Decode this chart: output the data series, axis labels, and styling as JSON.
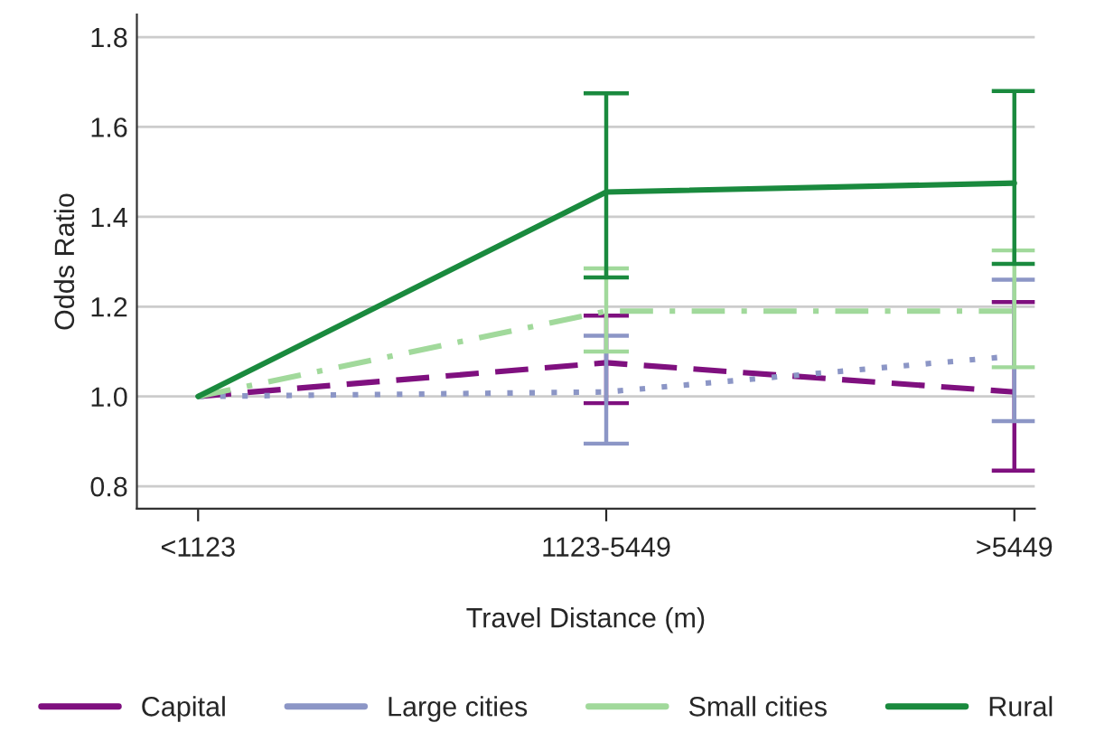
{
  "chart_data": {
    "type": "line",
    "xlabel": "Travel Distance (m)",
    "ylabel": "Odds Ratio",
    "categories": [
      "<1123",
      "1123-5449",
      ">5449"
    ],
    "series": [
      {
        "name": "Capital",
        "color": "#7f107f",
        "line_style": "dashed",
        "values": [
          1.0,
          1.075,
          1.01
        ],
        "errors": [
          null,
          [
            0.985,
            1.18
          ],
          [
            0.835,
            1.21
          ]
        ]
      },
      {
        "name": "Large cities",
        "color": "#8c96c6",
        "line_style": "dotted",
        "values": [
          1.0,
          1.01,
          1.09
        ],
        "errors": [
          null,
          [
            0.895,
            1.135
          ],
          [
            0.945,
            1.26
          ]
        ]
      },
      {
        "name": "Small cities",
        "color": "#a1d99b",
        "line_style": "dashdot",
        "values": [
          1.0,
          1.19,
          1.19
        ],
        "errors": [
          null,
          [
            1.1,
            1.285
          ],
          [
            1.065,
            1.325
          ]
        ]
      },
      {
        "name": "Rural",
        "color": "#1a8a3e",
        "line_style": "solid",
        "values": [
          1.0,
          1.455,
          1.475
        ],
        "errors": [
          null,
          [
            1.265,
            1.675
          ],
          [
            1.295,
            1.68
          ]
        ]
      }
    ],
    "ylim": [
      0.75,
      1.85
    ],
    "yticks": [
      0.8,
      {
        "value": 1.0,
        "label": "1.0"
      },
      1.2,
      1.4,
      1.6,
      1.8
    ],
    "grid": "y",
    "legend": "bottom",
    "marker": "none"
  }
}
